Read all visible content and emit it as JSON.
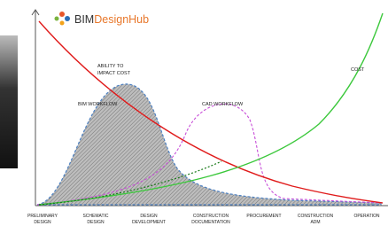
{
  "logo": {
    "part1": "BIM",
    "part2": "DesignHub"
  },
  "annotations": {
    "ability_line1": "ABILITY TO",
    "ability_line2": "IMPACT COST",
    "cost": "COST",
    "bim": "BIM WORKFLOW",
    "cad": "CAD WORKFLOW"
  },
  "phases": [
    {
      "line1": "PRELIMINARY",
      "line2": "DESIGN"
    },
    {
      "line1": "SCHEMATIC",
      "line2": "DESIGN"
    },
    {
      "line1": "DESIGN",
      "line2": "DEVELOPMENT"
    },
    {
      "line1": "CONSTRUCTION",
      "line2": "DOCUMENTATION"
    },
    {
      "line1": "PROCUREMENT",
      "line2": null
    },
    {
      "line1": "CONSTRUCTION",
      "line2": "ADM"
    },
    {
      "line1": "OPERATION",
      "line2": null
    }
  ]
}
